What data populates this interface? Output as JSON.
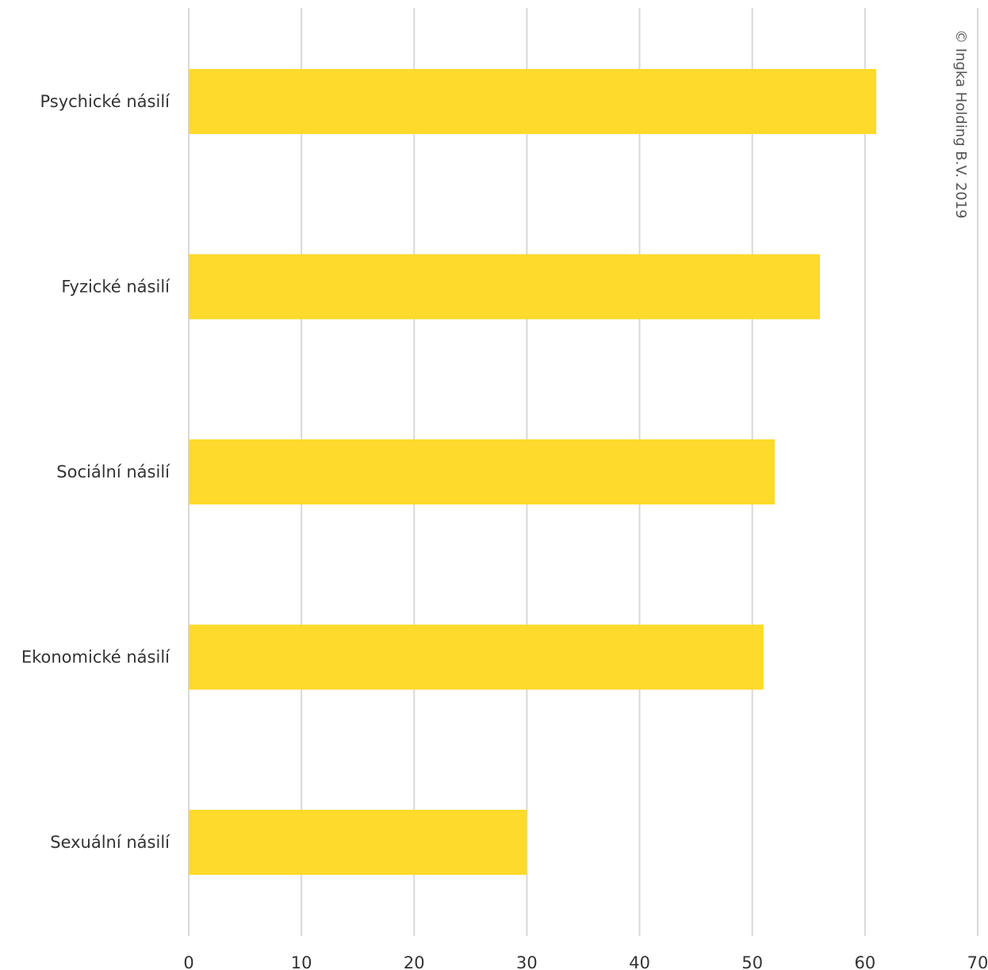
{
  "chart_data": {
    "type": "bar",
    "orientation": "horizontal",
    "categories": [
      "Psychické násilí",
      "Fyzické násilí",
      "Sociální násilí",
      "Ekonomické násilí",
      "Sexuální násilí"
    ],
    "values": [
      61,
      56,
      52,
      51,
      30
    ],
    "xlim": [
      0,
      70
    ],
    "xticks": [
      "0",
      "10",
      "20",
      "30",
      "40",
      "50",
      "60",
      "70"
    ],
    "grid": "vertical",
    "bar_color": "#fdda2b",
    "grid_color": "#d8d8d8"
  },
  "copyright": "© Ingka Holding B.V. 2019"
}
